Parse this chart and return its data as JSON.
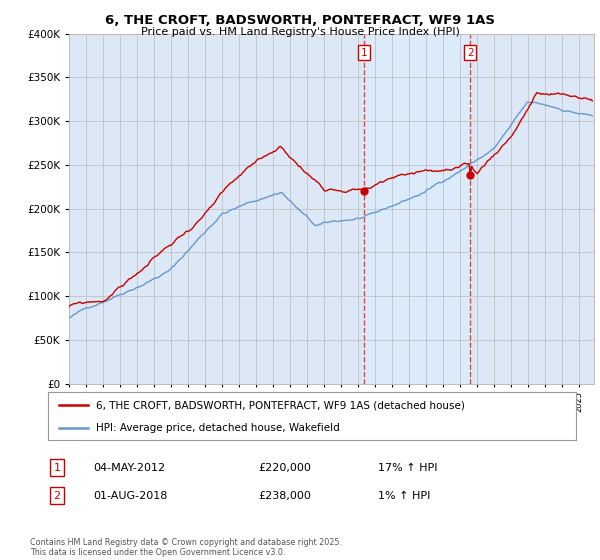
{
  "title": "6, THE CROFT, BADSWORTH, PONTEFRACT, WF9 1AS",
  "subtitle": "Price paid vs. HM Land Registry's House Price Index (HPI)",
  "legend_line1": "6, THE CROFT, BADSWORTH, PONTEFRACT, WF9 1AS (detached house)",
  "legend_line2": "HPI: Average price, detached house, Wakefield",
  "annotation1_label": "1",
  "annotation1_date": "04-MAY-2012",
  "annotation1_price": "£220,000",
  "annotation1_hpi": "17% ↑ HPI",
  "annotation2_label": "2",
  "annotation2_date": "01-AUG-2018",
  "annotation2_price": "£238,000",
  "annotation2_hpi": "1% ↑ HPI",
  "footer": "Contains HM Land Registry data © Crown copyright and database right 2025.\nThis data is licensed under the Open Government Licence v3.0.",
  "background_color": "#ffffff",
  "plot_bg_color": "#dce8f5",
  "shaded_region_color": "#c8daf0",
  "red_color": "#cc0000",
  "blue_color": "#6699cc",
  "vline_color": "#dd4444",
  "grid_color": "#bbbbbb",
  "ylim": [
    0,
    400000
  ],
  "yticks": [
    0,
    50000,
    100000,
    150000,
    200000,
    250000,
    300000,
    350000,
    400000
  ],
  "sale1_year": 2012.35,
  "sale1_price": 220000,
  "sale2_year": 2018.58,
  "sale2_price": 238000,
  "xmin": 1995,
  "xmax": 2025.9
}
